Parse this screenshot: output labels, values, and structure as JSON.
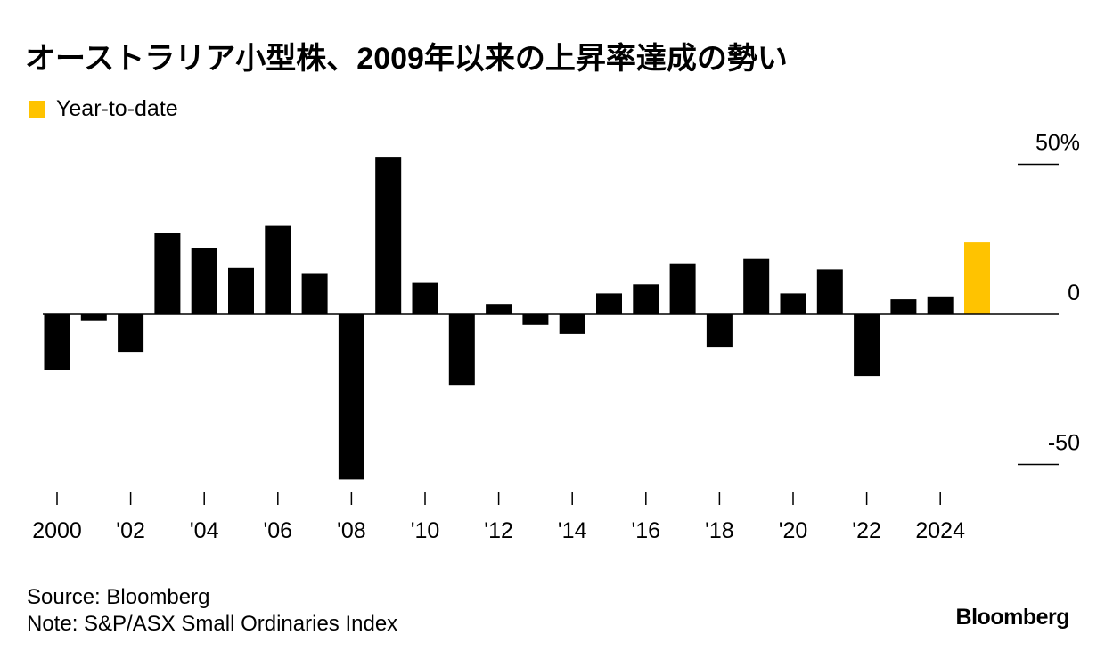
{
  "title": "オーストラリア小型株、2009年以来の上昇率達成の勢い",
  "legend": {
    "label": "Year-to-date"
  },
  "colors": {
    "bar": "#000000",
    "highlight": "#ffc300"
  },
  "source": "Source: Bloomberg",
  "note": "Note: S&P/ASX Small Ordinaries Index",
  "brand": "Bloomberg",
  "chart_data": {
    "type": "bar",
    "title": "",
    "xlabel": "",
    "ylabel": "",
    "ylim": [
      -60,
      55
    ],
    "y_ticks": [
      {
        "value": 50,
        "label": "50%"
      },
      {
        "value": 0,
        "label": "0"
      },
      {
        "value": -50,
        "label": "-50"
      }
    ],
    "x_ticks": [
      "2000",
      "'02",
      "'04",
      "'06",
      "'08",
      "'10",
      "'12",
      "'14",
      "'16",
      "'18",
      "'20",
      "'22",
      "2024"
    ],
    "categories": [
      "2000",
      "2001",
      "2002",
      "2003",
      "2004",
      "2005",
      "2006",
      "2007",
      "2008",
      "2009",
      "2010",
      "2011",
      "2012",
      "2013",
      "2014",
      "2015",
      "2016",
      "2017",
      "2018",
      "2019",
      "2020",
      "2021",
      "2022",
      "2023",
      "2024",
      "2025"
    ],
    "values": [
      -18.5,
      -2,
      -12.5,
      27,
      22,
      15.5,
      29.5,
      13.5,
      -55,
      52.5,
      10.5,
      -23.5,
      3.5,
      -3.5,
      -6.5,
      7,
      10,
      17,
      -11,
      18.5,
      7,
      15,
      -20.5,
      5,
      6,
      24
    ],
    "highlight_category": "2025",
    "legend_position": "top-left",
    "grid": false
  }
}
